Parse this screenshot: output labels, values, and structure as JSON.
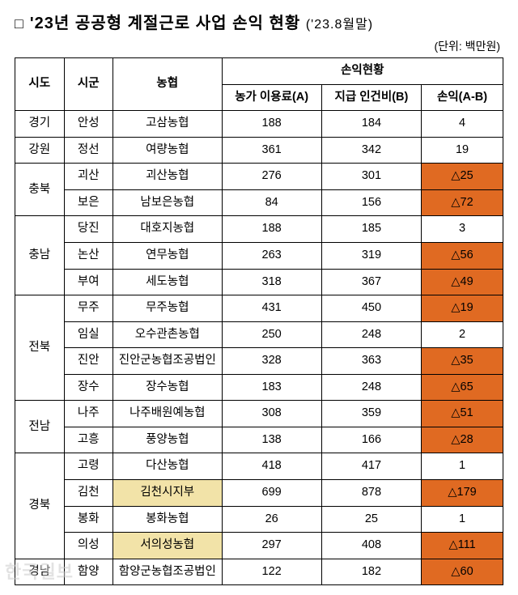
{
  "header": {
    "box_glyph": "□",
    "title_main": "'23년 공공형 계절근로 사업 손익 현황",
    "title_sub": "('23.8월말)",
    "unit": "(단위: 백만원)"
  },
  "table": {
    "headers": {
      "sido": "시도",
      "sigun": "시군",
      "coop": "농협",
      "pl_group": "손익현황",
      "fee_a": "농가 이용료(A)",
      "labor_b": "지급 인건비(B)",
      "pl_ab": "손익(A-B)"
    },
    "colors": {
      "highlight_yellow": "#f2e3a8",
      "highlight_orange": "#e06a22",
      "border": "#000000",
      "background": "#ffffff"
    },
    "rows": [
      {
        "sido": "경기",
        "sido_rowspan": 1,
        "sigun": "안성",
        "coop": "고삼농협",
        "a": "188",
        "b": "184",
        "pl": "4",
        "coop_hl": false,
        "pl_neg": false
      },
      {
        "sido": "강원",
        "sido_rowspan": 1,
        "sigun": "정선",
        "coop": "여량농협",
        "a": "361",
        "b": "342",
        "pl": "19",
        "coop_hl": false,
        "pl_neg": false
      },
      {
        "sido": "충북",
        "sido_rowspan": 2,
        "sigun": "괴산",
        "coop": "괴산농협",
        "a": "276",
        "b": "301",
        "pl": "△25",
        "coop_hl": false,
        "pl_neg": true
      },
      {
        "sido": "",
        "sido_rowspan": 0,
        "sigun": "보은",
        "coop": "남보은농협",
        "a": "84",
        "b": "156",
        "pl": "△72",
        "coop_hl": false,
        "pl_neg": true
      },
      {
        "sido": "충남",
        "sido_rowspan": 3,
        "sigun": "당진",
        "coop": "대호지농협",
        "a": "188",
        "b": "185",
        "pl": "3",
        "coop_hl": false,
        "pl_neg": false
      },
      {
        "sido": "",
        "sido_rowspan": 0,
        "sigun": "논산",
        "coop": "연무농협",
        "a": "263",
        "b": "319",
        "pl": "△56",
        "coop_hl": false,
        "pl_neg": true
      },
      {
        "sido": "",
        "sido_rowspan": 0,
        "sigun": "부여",
        "coop": "세도농협",
        "a": "318",
        "b": "367",
        "pl": "△49",
        "coop_hl": false,
        "pl_neg": true
      },
      {
        "sido": "전북",
        "sido_rowspan": 4,
        "sigun": "무주",
        "coop": "무주농협",
        "a": "431",
        "b": "450",
        "pl": "△19",
        "coop_hl": false,
        "pl_neg": true
      },
      {
        "sido": "",
        "sido_rowspan": 0,
        "sigun": "임실",
        "coop": "오수관촌농협",
        "a": "250",
        "b": "248",
        "pl": "2",
        "coop_hl": false,
        "pl_neg": false
      },
      {
        "sido": "",
        "sido_rowspan": 0,
        "sigun": "진안",
        "coop": "진안군농협조공법인",
        "a": "328",
        "b": "363",
        "pl": "△35",
        "coop_hl": false,
        "pl_neg": true
      },
      {
        "sido": "",
        "sido_rowspan": 0,
        "sigun": "장수",
        "coop": "장수농협",
        "a": "183",
        "b": "248",
        "pl": "△65",
        "coop_hl": false,
        "pl_neg": true
      },
      {
        "sido": "전남",
        "sido_rowspan": 2,
        "sigun": "나주",
        "coop": "나주배원예농협",
        "a": "308",
        "b": "359",
        "pl": "△51",
        "coop_hl": false,
        "pl_neg": true
      },
      {
        "sido": "",
        "sido_rowspan": 0,
        "sigun": "고흥",
        "coop": "풍양농협",
        "a": "138",
        "b": "166",
        "pl": "△28",
        "coop_hl": false,
        "pl_neg": true
      },
      {
        "sido": "경북",
        "sido_rowspan": 4,
        "sigun": "고령",
        "coop": "다산농협",
        "a": "418",
        "b": "417",
        "pl": "1",
        "coop_hl": false,
        "pl_neg": false
      },
      {
        "sido": "",
        "sido_rowspan": 0,
        "sigun": "김천",
        "coop": "김천시지부",
        "a": "699",
        "b": "878",
        "pl": "△179",
        "coop_hl": true,
        "pl_neg": true
      },
      {
        "sido": "",
        "sido_rowspan": 0,
        "sigun": "봉화",
        "coop": "봉화농협",
        "a": "26",
        "b": "25",
        "pl": "1",
        "coop_hl": false,
        "pl_neg": false
      },
      {
        "sido": "",
        "sido_rowspan": 0,
        "sigun": "의성",
        "coop": "서의성농협",
        "a": "297",
        "b": "408",
        "pl": "△111",
        "coop_hl": true,
        "pl_neg": true
      },
      {
        "sido": "경남",
        "sido_rowspan": 1,
        "sigun": "함양",
        "coop": "함양군농협조공법인",
        "a": "122",
        "b": "182",
        "pl": "△60",
        "coop_hl": false,
        "pl_neg": true
      }
    ]
  },
  "watermark": "한국일보"
}
